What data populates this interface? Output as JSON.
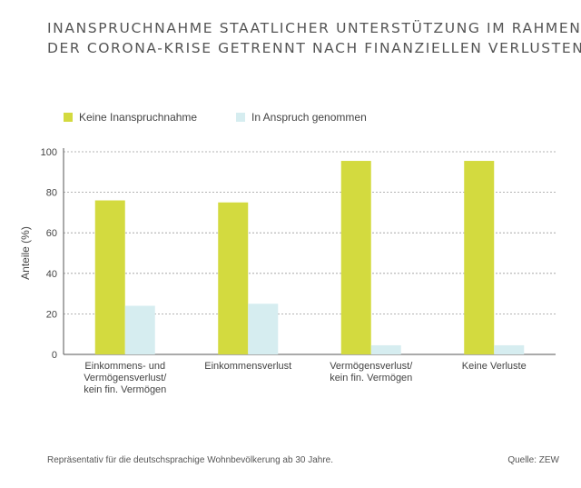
{
  "title": {
    "line1": "Inanspruchnahme staatlicher Unterstützung im Rahmen",
    "line2": "der Corona-Krise getrennt nach finanziellen Verlusten"
  },
  "legend": {
    "items": [
      {
        "label": "Keine Inanspruchnahme",
        "color": "#d3da3f"
      },
      {
        "label": "In Anspruch genommen",
        "color": "#d6edf0"
      }
    ]
  },
  "chart_data": {
    "type": "bar",
    "categories": [
      [
        "Einkommens- und",
        "Vermögensverlust/",
        "kein fin. Vermögen"
      ],
      [
        "Einkommensverlust"
      ],
      [
        "Vermögensverlust/",
        "kein fin. Vermögen"
      ],
      [
        "Keine Verluste"
      ]
    ],
    "series": [
      {
        "name": "Keine Inanspruchnahme",
        "color": "#d3da3f",
        "values": [
          76,
          75,
          95.5,
          95.5
        ]
      },
      {
        "name": "In Anspruch genommen",
        "color": "#d6edf0",
        "values": [
          24,
          25,
          4.5,
          4.5
        ]
      }
    ],
    "ylabel": "Anteile (%)",
    "ylim": [
      0,
      100
    ],
    "yticks": [
      0,
      20,
      40,
      60,
      80,
      100
    ],
    "grid": true
  },
  "footer": {
    "note": "Repräsentativ für die deutschsprachige Wohnbevölkerung ab 30 Jahre.",
    "source": "Quelle: ZEW"
  }
}
